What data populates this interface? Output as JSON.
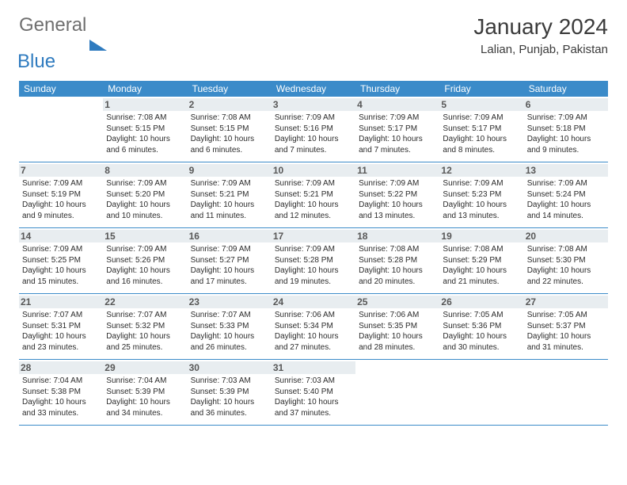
{
  "logo": {
    "word1": "General",
    "word2": "Blue"
  },
  "title": "January 2024",
  "location": "Lalian, Punjab, Pakistan",
  "header_bg": "#3b8bc9",
  "daynum_bg": "#e8edf0",
  "text_color": "#2b2b2b",
  "dow": [
    "Sunday",
    "Monday",
    "Tuesday",
    "Wednesday",
    "Thursday",
    "Friday",
    "Saturday"
  ],
  "weeks": [
    [
      {
        "n": "",
        "sr": "",
        "ss": "",
        "dl": ""
      },
      {
        "n": "1",
        "sr": "Sunrise: 7:08 AM",
        "ss": "Sunset: 5:15 PM",
        "dl": "Daylight: 10 hours and 6 minutes."
      },
      {
        "n": "2",
        "sr": "Sunrise: 7:08 AM",
        "ss": "Sunset: 5:15 PM",
        "dl": "Daylight: 10 hours and 6 minutes."
      },
      {
        "n": "3",
        "sr": "Sunrise: 7:09 AM",
        "ss": "Sunset: 5:16 PM",
        "dl": "Daylight: 10 hours and 7 minutes."
      },
      {
        "n": "4",
        "sr": "Sunrise: 7:09 AM",
        "ss": "Sunset: 5:17 PM",
        "dl": "Daylight: 10 hours and 7 minutes."
      },
      {
        "n": "5",
        "sr": "Sunrise: 7:09 AM",
        "ss": "Sunset: 5:17 PM",
        "dl": "Daylight: 10 hours and 8 minutes."
      },
      {
        "n": "6",
        "sr": "Sunrise: 7:09 AM",
        "ss": "Sunset: 5:18 PM",
        "dl": "Daylight: 10 hours and 9 minutes."
      }
    ],
    [
      {
        "n": "7",
        "sr": "Sunrise: 7:09 AM",
        "ss": "Sunset: 5:19 PM",
        "dl": "Daylight: 10 hours and 9 minutes."
      },
      {
        "n": "8",
        "sr": "Sunrise: 7:09 AM",
        "ss": "Sunset: 5:20 PM",
        "dl": "Daylight: 10 hours and 10 minutes."
      },
      {
        "n": "9",
        "sr": "Sunrise: 7:09 AM",
        "ss": "Sunset: 5:21 PM",
        "dl": "Daylight: 10 hours and 11 minutes."
      },
      {
        "n": "10",
        "sr": "Sunrise: 7:09 AM",
        "ss": "Sunset: 5:21 PM",
        "dl": "Daylight: 10 hours and 12 minutes."
      },
      {
        "n": "11",
        "sr": "Sunrise: 7:09 AM",
        "ss": "Sunset: 5:22 PM",
        "dl": "Daylight: 10 hours and 13 minutes."
      },
      {
        "n": "12",
        "sr": "Sunrise: 7:09 AM",
        "ss": "Sunset: 5:23 PM",
        "dl": "Daylight: 10 hours and 13 minutes."
      },
      {
        "n": "13",
        "sr": "Sunrise: 7:09 AM",
        "ss": "Sunset: 5:24 PM",
        "dl": "Daylight: 10 hours and 14 minutes."
      }
    ],
    [
      {
        "n": "14",
        "sr": "Sunrise: 7:09 AM",
        "ss": "Sunset: 5:25 PM",
        "dl": "Daylight: 10 hours and 15 minutes."
      },
      {
        "n": "15",
        "sr": "Sunrise: 7:09 AM",
        "ss": "Sunset: 5:26 PM",
        "dl": "Daylight: 10 hours and 16 minutes."
      },
      {
        "n": "16",
        "sr": "Sunrise: 7:09 AM",
        "ss": "Sunset: 5:27 PM",
        "dl": "Daylight: 10 hours and 17 minutes."
      },
      {
        "n": "17",
        "sr": "Sunrise: 7:09 AM",
        "ss": "Sunset: 5:28 PM",
        "dl": "Daylight: 10 hours and 19 minutes."
      },
      {
        "n": "18",
        "sr": "Sunrise: 7:08 AM",
        "ss": "Sunset: 5:28 PM",
        "dl": "Daylight: 10 hours and 20 minutes."
      },
      {
        "n": "19",
        "sr": "Sunrise: 7:08 AM",
        "ss": "Sunset: 5:29 PM",
        "dl": "Daylight: 10 hours and 21 minutes."
      },
      {
        "n": "20",
        "sr": "Sunrise: 7:08 AM",
        "ss": "Sunset: 5:30 PM",
        "dl": "Daylight: 10 hours and 22 minutes."
      }
    ],
    [
      {
        "n": "21",
        "sr": "Sunrise: 7:07 AM",
        "ss": "Sunset: 5:31 PM",
        "dl": "Daylight: 10 hours and 23 minutes."
      },
      {
        "n": "22",
        "sr": "Sunrise: 7:07 AM",
        "ss": "Sunset: 5:32 PM",
        "dl": "Daylight: 10 hours and 25 minutes."
      },
      {
        "n": "23",
        "sr": "Sunrise: 7:07 AM",
        "ss": "Sunset: 5:33 PM",
        "dl": "Daylight: 10 hours and 26 minutes."
      },
      {
        "n": "24",
        "sr": "Sunrise: 7:06 AM",
        "ss": "Sunset: 5:34 PM",
        "dl": "Daylight: 10 hours and 27 minutes."
      },
      {
        "n": "25",
        "sr": "Sunrise: 7:06 AM",
        "ss": "Sunset: 5:35 PM",
        "dl": "Daylight: 10 hours and 28 minutes."
      },
      {
        "n": "26",
        "sr": "Sunrise: 7:05 AM",
        "ss": "Sunset: 5:36 PM",
        "dl": "Daylight: 10 hours and 30 minutes."
      },
      {
        "n": "27",
        "sr": "Sunrise: 7:05 AM",
        "ss": "Sunset: 5:37 PM",
        "dl": "Daylight: 10 hours and 31 minutes."
      }
    ],
    [
      {
        "n": "28",
        "sr": "Sunrise: 7:04 AM",
        "ss": "Sunset: 5:38 PM",
        "dl": "Daylight: 10 hours and 33 minutes."
      },
      {
        "n": "29",
        "sr": "Sunrise: 7:04 AM",
        "ss": "Sunset: 5:39 PM",
        "dl": "Daylight: 10 hours and 34 minutes."
      },
      {
        "n": "30",
        "sr": "Sunrise: 7:03 AM",
        "ss": "Sunset: 5:39 PM",
        "dl": "Daylight: 10 hours and 36 minutes."
      },
      {
        "n": "31",
        "sr": "Sunrise: 7:03 AM",
        "ss": "Sunset: 5:40 PM",
        "dl": "Daylight: 10 hours and 37 minutes."
      },
      {
        "n": "",
        "sr": "",
        "ss": "",
        "dl": ""
      },
      {
        "n": "",
        "sr": "",
        "ss": "",
        "dl": ""
      },
      {
        "n": "",
        "sr": "",
        "ss": "",
        "dl": ""
      }
    ]
  ]
}
